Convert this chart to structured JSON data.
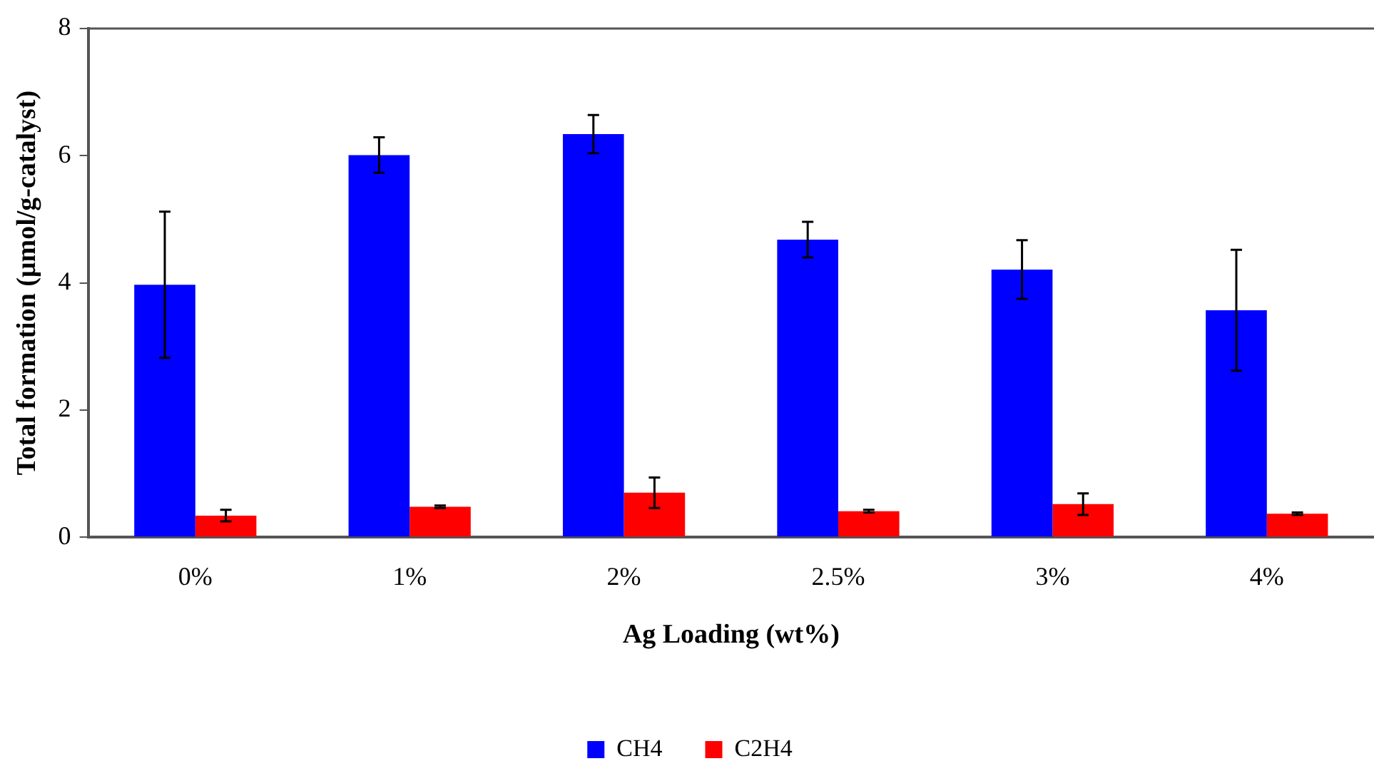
{
  "chart_data": {
    "type": "bar",
    "xlabel": "Ag Loading (wt%)",
    "ylabel": "Total formation (μmol/g-catalyst)",
    "categories": [
      "0%",
      "1%",
      "2%",
      "2.5%",
      "3%",
      "4%"
    ],
    "ylim": [
      0,
      8
    ],
    "yticks": [
      0,
      2,
      4,
      6,
      8
    ],
    "legend": "bottom",
    "series": [
      {
        "name": "CH4",
        "color": "#0000ff",
        "values": [
          3.97,
          6.01,
          6.34,
          4.68,
          4.21,
          3.57
        ],
        "errors": [
          1.15,
          0.28,
          0.3,
          0.28,
          0.46,
          0.95
        ]
      },
      {
        "name": "C2H4",
        "color": "#ff0000",
        "values": [
          0.34,
          0.48,
          0.7,
          0.41,
          0.52,
          0.37
        ],
        "errors": [
          0.09,
          0.02,
          0.24,
          0.02,
          0.17,
          0.02
        ]
      }
    ]
  }
}
